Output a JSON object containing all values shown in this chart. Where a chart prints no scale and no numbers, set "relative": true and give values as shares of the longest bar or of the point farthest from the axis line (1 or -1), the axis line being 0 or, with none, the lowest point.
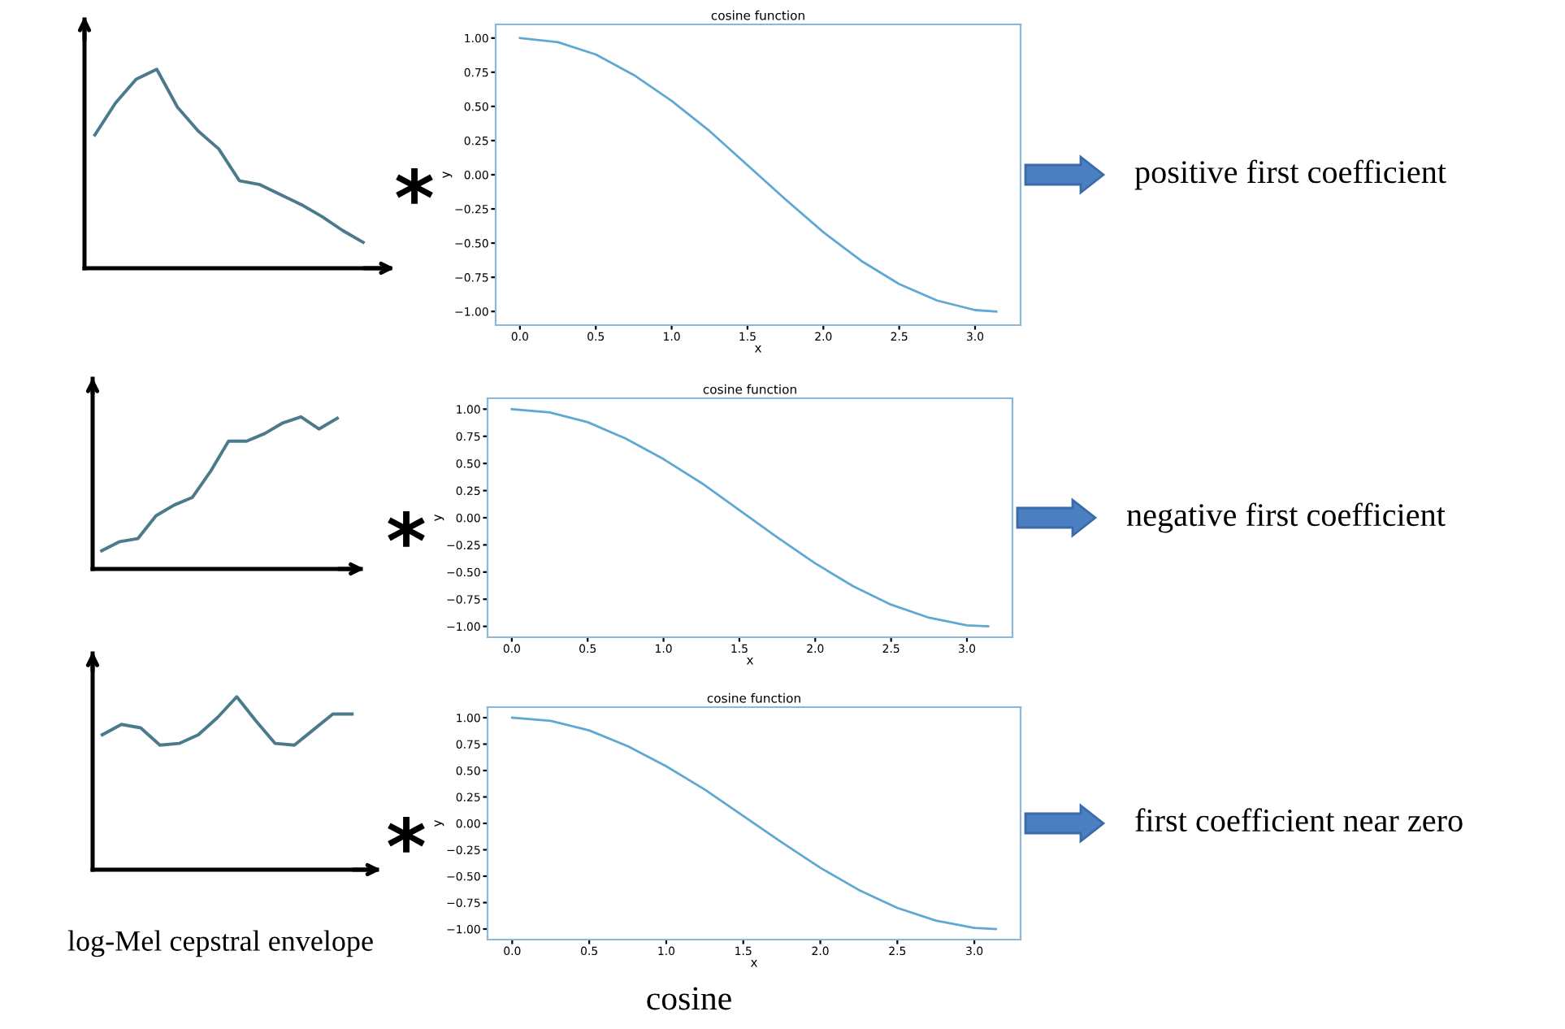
{
  "chart_data": [
    {
      "type": "line",
      "relative": true,
      "categories": [
        null,
        null,
        null,
        null,
        null,
        null,
        null,
        null,
        null,
        null,
        null,
        null,
        null,
        null
      ],
      "series": [
        {
          "color": "#4a7a8c",
          "values": [
            0.67,
            0.83,
            0.95,
            1.0,
            0.81,
            0.69,
            0.6,
            0.44,
            0.42,
            0.37,
            0.32,
            0.26,
            0.19,
            0.13
          ]
        }
      ]
    },
    {
      "type": "line",
      "title": "cosine function",
      "xlabel": "x",
      "ylabel": "y",
      "x": [
        0,
        0.25,
        0.5,
        0.75,
        1.0,
        1.25,
        1.5,
        1.75,
        2.0,
        2.25,
        2.5,
        2.75,
        3.0,
        3.14
      ],
      "series": [
        {
          "color": "#5fa8d3",
          "values": [
            1.0,
            0.97,
            0.88,
            0.73,
            0.54,
            0.32,
            0.07,
            -0.18,
            -0.42,
            -0.63,
            -0.8,
            -0.92,
            -0.99,
            -1.0
          ]
        }
      ],
      "xlim": [
        -0.16,
        3.3
      ],
      "ylim": [
        -1.1,
        1.1
      ],
      "xticks": [
        {
          "value": 0,
          "label": "0.0"
        },
        {
          "value": 0.5,
          "label": "0.5"
        },
        {
          "value": 1.0,
          "label": "1.0"
        },
        {
          "value": 1.5,
          "label": "1.5"
        },
        {
          "value": 2.0,
          "label": "2.0"
        },
        {
          "value": 2.5,
          "label": "2.5"
        },
        {
          "value": 3.0,
          "label": "3.0"
        }
      ],
      "yticks": [
        {
          "value": -1.0,
          "label": "−1.00"
        },
        {
          "value": -0.75,
          "label": "−0.75"
        },
        {
          "value": -0.5,
          "label": "−0.50"
        },
        {
          "value": -0.25,
          "label": "−0.25"
        },
        {
          "value": 0,
          "label": "0.00"
        },
        {
          "value": 0.25,
          "label": "0.25"
        },
        {
          "value": 0.5,
          "label": "0.50"
        },
        {
          "value": 0.75,
          "label": "0.75"
        },
        {
          "value": 1.0,
          "label": "1.00"
        }
      ],
      "annotations": [
        "*",
        "positive first coefficient"
      ]
    },
    {
      "type": "line",
      "relative": true,
      "categories": [
        null,
        null,
        null,
        null,
        null,
        null,
        null,
        null,
        null,
        null,
        null,
        null,
        null,
        null
      ],
      "series": [
        {
          "color": "#4a7a8c",
          "values": [
            0.12,
            0.18,
            0.2,
            0.35,
            0.42,
            0.47,
            0.64,
            0.84,
            0.84,
            0.89,
            0.96,
            1.0,
            0.92,
            0.99
          ]
        }
      ]
    },
    {
      "type": "line",
      "title": "cosine function",
      "xlabel": "x",
      "ylabel": "y",
      "x": [
        0,
        0.25,
        0.5,
        0.75,
        1.0,
        1.25,
        1.5,
        1.75,
        2.0,
        2.25,
        2.5,
        2.75,
        3.0,
        3.14
      ],
      "series": [
        {
          "color": "#5fa8d3",
          "values": [
            1.0,
            0.97,
            0.88,
            0.73,
            0.54,
            0.32,
            0.07,
            -0.18,
            -0.42,
            -0.63,
            -0.8,
            -0.92,
            -0.99,
            -1.0
          ]
        }
      ],
      "xlim": [
        -0.16,
        3.3
      ],
      "ylim": [
        -1.1,
        1.1
      ],
      "xticks": [
        {
          "value": 0,
          "label": "0.0"
        },
        {
          "value": 0.5,
          "label": "0.5"
        },
        {
          "value": 1.0,
          "label": "1.0"
        },
        {
          "value": 1.5,
          "label": "1.5"
        },
        {
          "value": 2.0,
          "label": "2.0"
        },
        {
          "value": 2.5,
          "label": "2.5"
        },
        {
          "value": 3.0,
          "label": "3.0"
        }
      ],
      "yticks": [
        {
          "value": -1.0,
          "label": "−1.00"
        },
        {
          "value": -0.75,
          "label": "−0.75"
        },
        {
          "value": -0.5,
          "label": "−0.50"
        },
        {
          "value": -0.25,
          "label": "−0.25"
        },
        {
          "value": 0,
          "label": "0.00"
        },
        {
          "value": 0.25,
          "label": "0.25"
        },
        {
          "value": 0.5,
          "label": "0.50"
        },
        {
          "value": 0.75,
          "label": "0.75"
        },
        {
          "value": 1.0,
          "label": "1.00"
        }
      ],
      "annotations": [
        "*",
        "negative first coefficient"
      ]
    },
    {
      "type": "line",
      "relative": true,
      "categories": [
        null,
        null,
        null,
        null,
        null,
        null,
        null,
        null,
        null,
        null,
        null,
        null,
        null,
        null
      ],
      "series": [
        {
          "color": "#4a7a8c",
          "values": [
            0.78,
            0.84,
            0.82,
            0.72,
            0.73,
            0.78,
            0.88,
            1.0,
            0.86,
            0.73,
            0.72,
            0.81,
            0.9,
            0.9
          ]
        }
      ],
      "annotations": [
        "log-Mel cepstral envelope"
      ]
    },
    {
      "type": "line",
      "title": "cosine function",
      "xlabel": "x",
      "ylabel": "y",
      "x": [
        0,
        0.25,
        0.5,
        0.75,
        1.0,
        1.25,
        1.5,
        1.75,
        2.0,
        2.25,
        2.5,
        2.75,
        3.0,
        3.14
      ],
      "series": [
        {
          "color": "#5fa8d3",
          "values": [
            1.0,
            0.97,
            0.88,
            0.73,
            0.54,
            0.32,
            0.07,
            -0.18,
            -0.42,
            -0.63,
            -0.8,
            -0.92,
            -0.99,
            -1.0
          ]
        }
      ],
      "xlim": [
        -0.16,
        3.3
      ],
      "ylim": [
        -1.1,
        1.1
      ],
      "xticks": [
        {
          "value": 0,
          "label": "0.0"
        },
        {
          "value": 0.5,
          "label": "0.5"
        },
        {
          "value": 1.0,
          "label": "1.0"
        },
        {
          "value": 1.5,
          "label": "1.5"
        },
        {
          "value": 2.0,
          "label": "2.0"
        },
        {
          "value": 2.5,
          "label": "2.5"
        },
        {
          "value": 3.0,
          "label": "3.0"
        }
      ],
      "yticks": [
        {
          "value": -1.0,
          "label": "−1.00"
        },
        {
          "value": -0.75,
          "label": "−0.75"
        },
        {
          "value": -0.5,
          "label": "−0.50"
        },
        {
          "value": -0.25,
          "label": "−0.25"
        },
        {
          "value": 0,
          "label": "0.00"
        },
        {
          "value": 0.25,
          "label": "0.25"
        },
        {
          "value": 0.5,
          "label": "0.50"
        },
        {
          "value": 0.75,
          "label": "0.75"
        },
        {
          "value": 1.0,
          "label": "1.00"
        }
      ],
      "annotations": [
        "*",
        "first coefficient near zero",
        "cosine"
      ]
    }
  ]
}
